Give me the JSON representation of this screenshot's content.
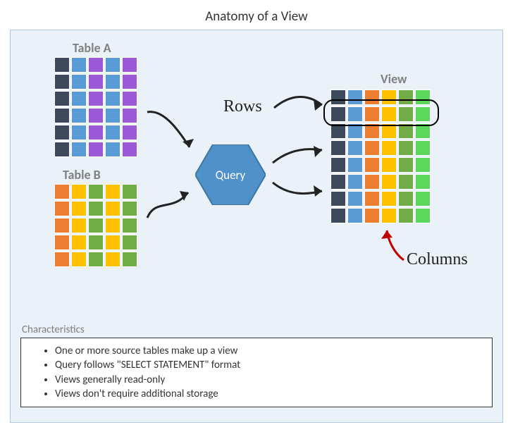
{
  "title": "Anatomy of a View",
  "labels": {
    "tableA": "Table A",
    "tableB": "Table B",
    "view": "View",
    "query": "Query",
    "rows": "Rows",
    "columns": "Columns",
    "characteristics": "Characteristics"
  },
  "colors": {
    "background": "#eaf1f8",
    "border": "#b3c8e0",
    "hexFill": "#4f91c8",
    "hexStroke": "#3b76a6",
    "labelGray": "#808080",
    "darkNavy": "#3d4a5c",
    "blue": "#5b9bd5",
    "purple": "#9b59d8",
    "orange": "#ed7d31",
    "yellow": "#ffc000",
    "green": "#70ad47",
    "brightGreen": "#5bd75b",
    "arrowRed": "#c00000",
    "arrowBlack": "#222222"
  },
  "tableA": {
    "rows": 6,
    "cols": 5,
    "col_colors": [
      "#3d4a5c",
      "#5b9bd5",
      "#9b59d8",
      "#5b9bd5",
      "#9b59d8"
    ]
  },
  "tableB": {
    "rows": 5,
    "cols": 5,
    "col_colors": [
      "#ed7d31",
      "#ffc000",
      "#70ad47",
      "#ffc000",
      "#70ad47"
    ]
  },
  "view": {
    "rows": 8,
    "cols": 6,
    "col_colors": [
      "#3d4a5c",
      "#5b9bd5",
      "#ed7d31",
      "#ffc000",
      "#70ad47",
      "#5bd75b"
    ]
  },
  "characteristics": [
    "One or more source tables make up a view",
    "Query follows \"SELECT STATEMENT\" format",
    "Views generally read-only",
    "Views don't require additional storage"
  ]
}
